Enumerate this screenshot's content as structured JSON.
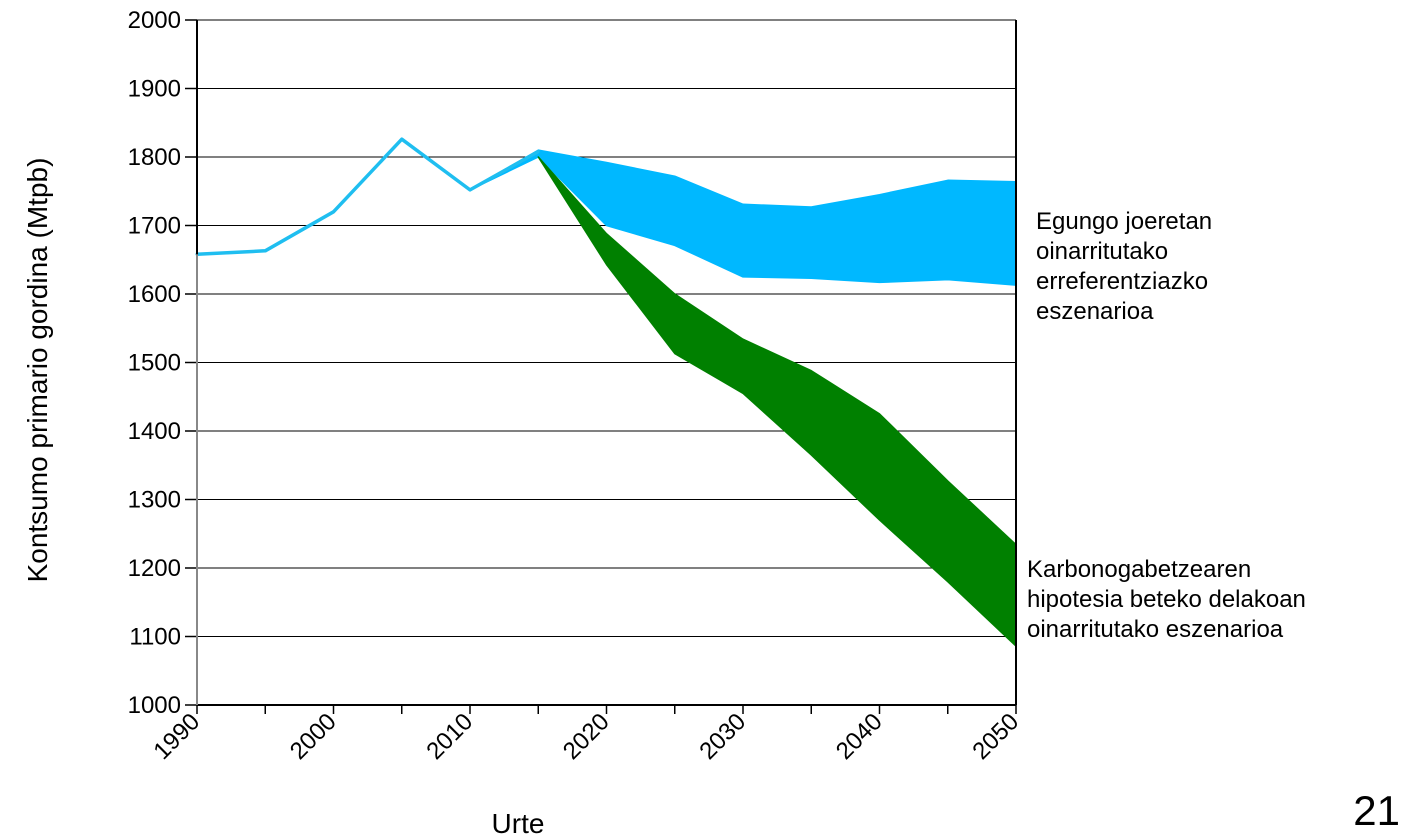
{
  "page_number": "21",
  "chart_data": {
    "type": "area",
    "xlabel": "Urte",
    "ylabel": "Kontsumo primario gordina (Mtpb)",
    "xlim": [
      1990,
      2050
    ],
    "ylim": [
      1000,
      2000
    ],
    "x_ticks": [
      1990,
      2000,
      2010,
      2020,
      2030,
      2040,
      2050
    ],
    "x_minor_ticks": [
      1995,
      2005,
      2015,
      2025,
      2035,
      2045
    ],
    "y_ticks": [
      1000,
      1100,
      1200,
      1300,
      1400,
      1500,
      1600,
      1700,
      1800,
      1900,
      2000
    ],
    "grid": "horizontal",
    "legend": "none",
    "colors": {
      "historical": "#1fbef0",
      "reference": "#00b8ff",
      "decarbonisation": "#008000",
      "grid": "#000000",
      "axis": "#000000"
    },
    "historical": {
      "x": [
        1990,
        1995,
        2000,
        2005,
        2010,
        2015
      ],
      "y": [
        1658,
        1663,
        1720,
        1826,
        1752,
        1808
      ]
    },
    "bands": [
      {
        "label": "Egungo joeretan oinarritutako erreferentziazko eszenarioa",
        "color": "#00b8ff",
        "x": [
          2010,
          2015,
          2020,
          2025,
          2030,
          2035,
          2040,
          2045,
          2050
        ],
        "upper": [
          1752,
          1810,
          1792,
          1772,
          1731,
          1727,
          1745,
          1766,
          1764
        ],
        "lower": [
          1752,
          1800,
          1700,
          1671,
          1625,
          1623,
          1617,
          1621,
          1613
        ]
      },
      {
        "label": "Karbonogabetzearen hipotesia beteko delakoan oinarritutako eszenarioa",
        "color": "#008000",
        "x": [
          2015,
          2020,
          2025,
          2030,
          2035,
          2040,
          2045,
          2050
        ],
        "upper": [
          1800,
          1688,
          1600,
          1534,
          1488,
          1425,
          1327,
          1234
        ],
        "lower": [
          1800,
          1643,
          1513,
          1455,
          1365,
          1270,
          1180,
          1086
        ]
      }
    ]
  }
}
